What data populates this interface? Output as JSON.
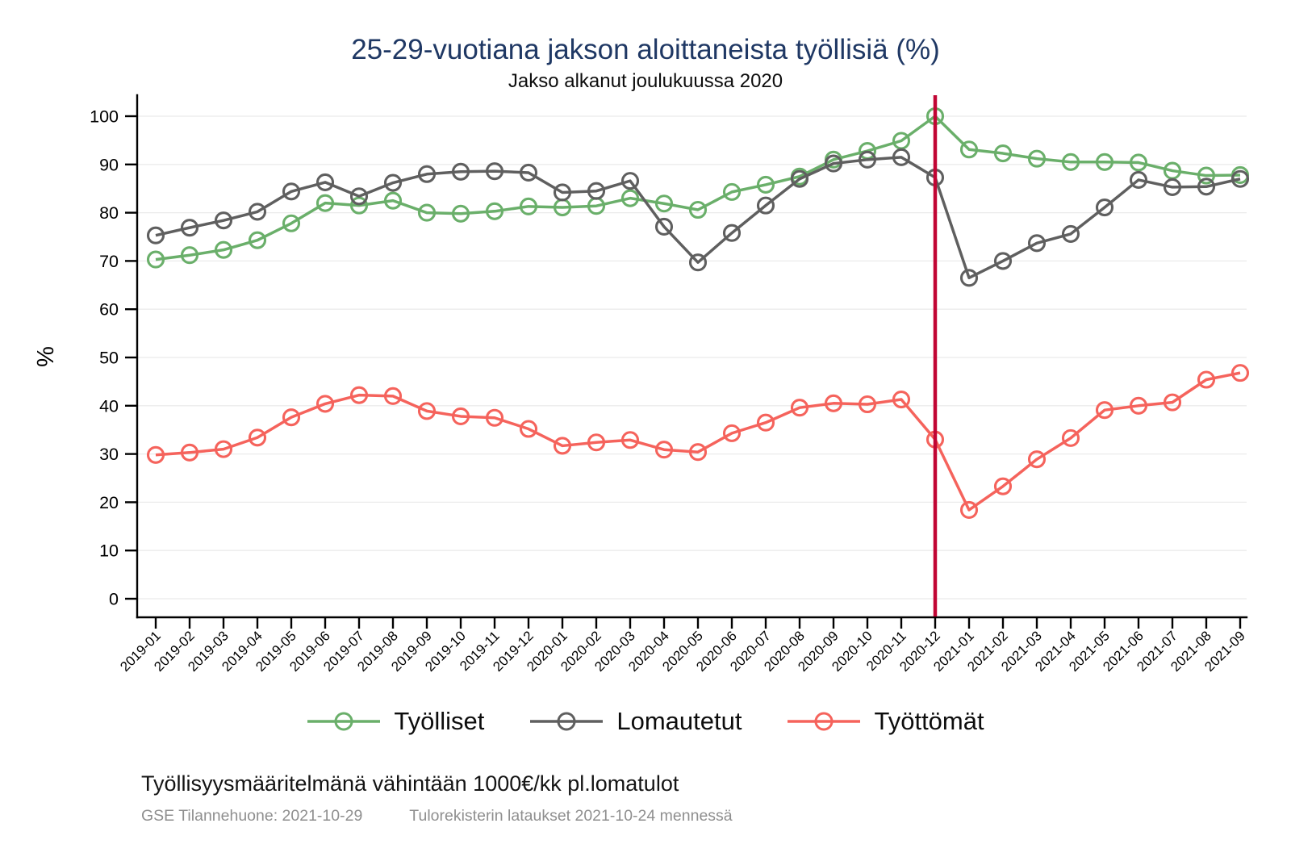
{
  "page": {
    "footnote": "Työllisyysmääritelmänä vähintään 1000€/kk pl.lomatulot",
    "source_left": "GSE Tilannehuone: 2021-10-29",
    "source_right": "Tulorekisterin lataukset 2021-10-24 mennessä"
  },
  "colors": {
    "title_text": "#1f3864",
    "axis": "#000000",
    "grid": "#ebebeb",
    "source_text": "#8f8f8f",
    "employed_green": "#6aaf6a",
    "furloughed_gray": "#5f5f5f",
    "unemployed_red": "#f5635c",
    "event_line_red": "#c10534"
  },
  "chart_data": {
    "type": "line",
    "title": "25-29-vuotiana jakson aloittaneista työllisiä (%)",
    "subtitle": "Jakso alkanut joulukuussa 2020",
    "xlabel": "",
    "ylabel": "%",
    "ylim": [
      0,
      100
    ],
    "ytick_step": 10,
    "grid": "horizontal",
    "legend_position": "bottom",
    "x": [
      "2019-01",
      "2019-02",
      "2019-03",
      "2019-04",
      "2019-05",
      "2019-06",
      "2019-07",
      "2019-08",
      "2019-09",
      "2019-10",
      "2019-11",
      "2019-12",
      "2020-01",
      "2020-02",
      "2020-03",
      "2020-04",
      "2020-05",
      "2020-06",
      "2020-07",
      "2020-08",
      "2020-09",
      "2020-10",
      "2020-11",
      "2020-12",
      "2021-01",
      "2021-02",
      "2021-03",
      "2021-04",
      "2021-05",
      "2021-06",
      "2021-07",
      "2021-08",
      "2021-09"
    ],
    "vline": {
      "x": "2020-12",
      "color": "#c10534"
    },
    "series": [
      {
        "name": "Työlliset",
        "color": "#6aaf6a",
        "values": [
          70.3,
          71.2,
          72.3,
          74.3,
          77.8,
          82.0,
          81.5,
          82.5,
          80.0,
          79.8,
          80.3,
          81.3,
          81.1,
          81.4,
          83.0,
          81.9,
          80.6,
          84.3,
          85.8,
          87.5,
          91.0,
          92.8,
          94.9,
          100.0,
          93.1,
          92.3,
          91.2,
          90.5,
          90.5,
          90.4,
          88.7,
          87.7,
          87.8
        ]
      },
      {
        "name": "Lomautetut",
        "color": "#5f5f5f",
        "values": [
          75.3,
          76.9,
          78.4,
          80.2,
          84.4,
          86.3,
          83.4,
          86.2,
          88.0,
          88.5,
          88.6,
          88.3,
          84.2,
          84.5,
          86.6,
          77.1,
          69.7,
          75.8,
          81.5,
          87.0,
          90.2,
          91.0,
          91.5,
          87.3,
          66.5,
          70.0,
          73.7,
          75.6,
          81.1,
          86.8,
          85.3,
          85.4,
          87.0
        ]
      },
      {
        "name": "Työttömät",
        "color": "#f5635c",
        "values": [
          29.8,
          30.3,
          31.0,
          33.4,
          37.6,
          40.4,
          42.2,
          42.0,
          38.9,
          37.8,
          37.5,
          35.2,
          31.7,
          32.4,
          32.9,
          30.9,
          30.4,
          34.3,
          36.5,
          39.6,
          40.5,
          40.3,
          41.3,
          33.0,
          18.4,
          23.3,
          28.9,
          33.3,
          39.1,
          40.0,
          40.7,
          45.4,
          46.8
        ]
      }
    ]
  }
}
